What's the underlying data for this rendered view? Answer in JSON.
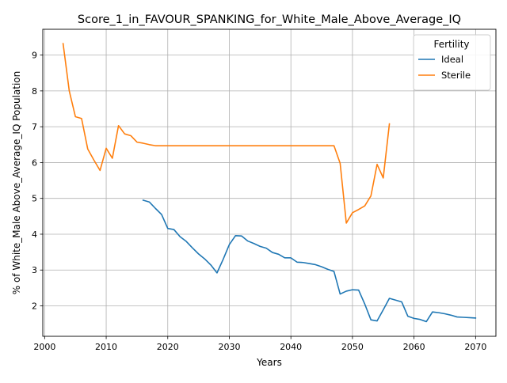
{
  "chart_data": {
    "type": "line",
    "title": "Score_1_in_FAVOUR_SPANKING_for_White_Male_Above_Average_IQ",
    "xlabel": "Years",
    "ylabel": "% of White_Male Above_Average_IQ Population",
    "xlim": [
      1999.7,
      2073.3
    ],
    "ylim": [
      1.15,
      9.72
    ],
    "xticks": [
      2000,
      2010,
      2020,
      2030,
      2040,
      2050,
      2060,
      2070
    ],
    "yticks": [
      2,
      3,
      4,
      5,
      6,
      7,
      8,
      9
    ],
    "grid": true,
    "legend": {
      "title": "Fertility",
      "position": "top-right"
    },
    "series": [
      {
        "name": "Ideal",
        "color": "#1f77b4",
        "x": [
          2016,
          2017,
          2018,
          2019,
          2020,
          2021,
          2022,
          2023,
          2024,
          2025,
          2026,
          2027,
          2028,
          2029,
          2030,
          2031,
          2032,
          2033,
          2034,
          2035,
          2036,
          2037,
          2038,
          2039,
          2040,
          2041,
          2042,
          2043,
          2044,
          2045,
          2046,
          2047,
          2048,
          2049,
          2050,
          2051,
          2052,
          2053,
          2054,
          2055,
          2056,
          2057,
          2058,
          2059,
          2060,
          2061,
          2062,
          2063,
          2064,
          2065,
          2066,
          2067,
          2068,
          2069,
          2070
        ],
        "values": [
          4.95,
          4.9,
          4.72,
          4.55,
          4.16,
          4.13,
          3.93,
          3.8,
          3.62,
          3.45,
          3.31,
          3.14,
          2.92,
          3.3,
          3.71,
          3.96,
          3.95,
          3.81,
          3.74,
          3.66,
          3.61,
          3.49,
          3.44,
          3.34,
          3.34,
          3.22,
          3.21,
          3.18,
          3.15,
          3.09,
          3.02,
          2.96,
          2.33,
          2.41,
          2.45,
          2.44,
          2.05,
          1.61,
          1.58,
          1.89,
          2.21,
          2.16,
          2.11,
          1.71,
          1.65,
          1.62,
          1.56,
          1.83,
          1.81,
          1.78,
          1.74,
          1.69,
          1.68,
          1.67,
          1.66
        ]
      },
      {
        "name": "Sterile",
        "color": "#ff7f0e",
        "x": [
          2003,
          2004,
          2005,
          2006,
          2007,
          2008,
          2009,
          2010,
          2011,
          2012,
          2013,
          2014,
          2015,
          2016,
          2017,
          2018,
          2019,
          2020,
          2025,
          2030,
          2035,
          2040,
          2045,
          2047,
          2048,
          2049,
          2050,
          2051,
          2052,
          2053,
          2054,
          2055,
          2056
        ],
        "values": [
          9.32,
          8.0,
          7.28,
          7.23,
          6.38,
          6.07,
          5.78,
          6.4,
          6.12,
          7.03,
          6.8,
          6.75,
          6.57,
          6.54,
          6.5,
          6.47,
          6.47,
          6.47,
          6.47,
          6.47,
          6.47,
          6.47,
          6.47,
          6.47,
          5.98,
          4.31,
          4.6,
          4.69,
          4.79,
          5.07,
          5.95,
          5.57,
          7.08
        ]
      }
    ]
  }
}
